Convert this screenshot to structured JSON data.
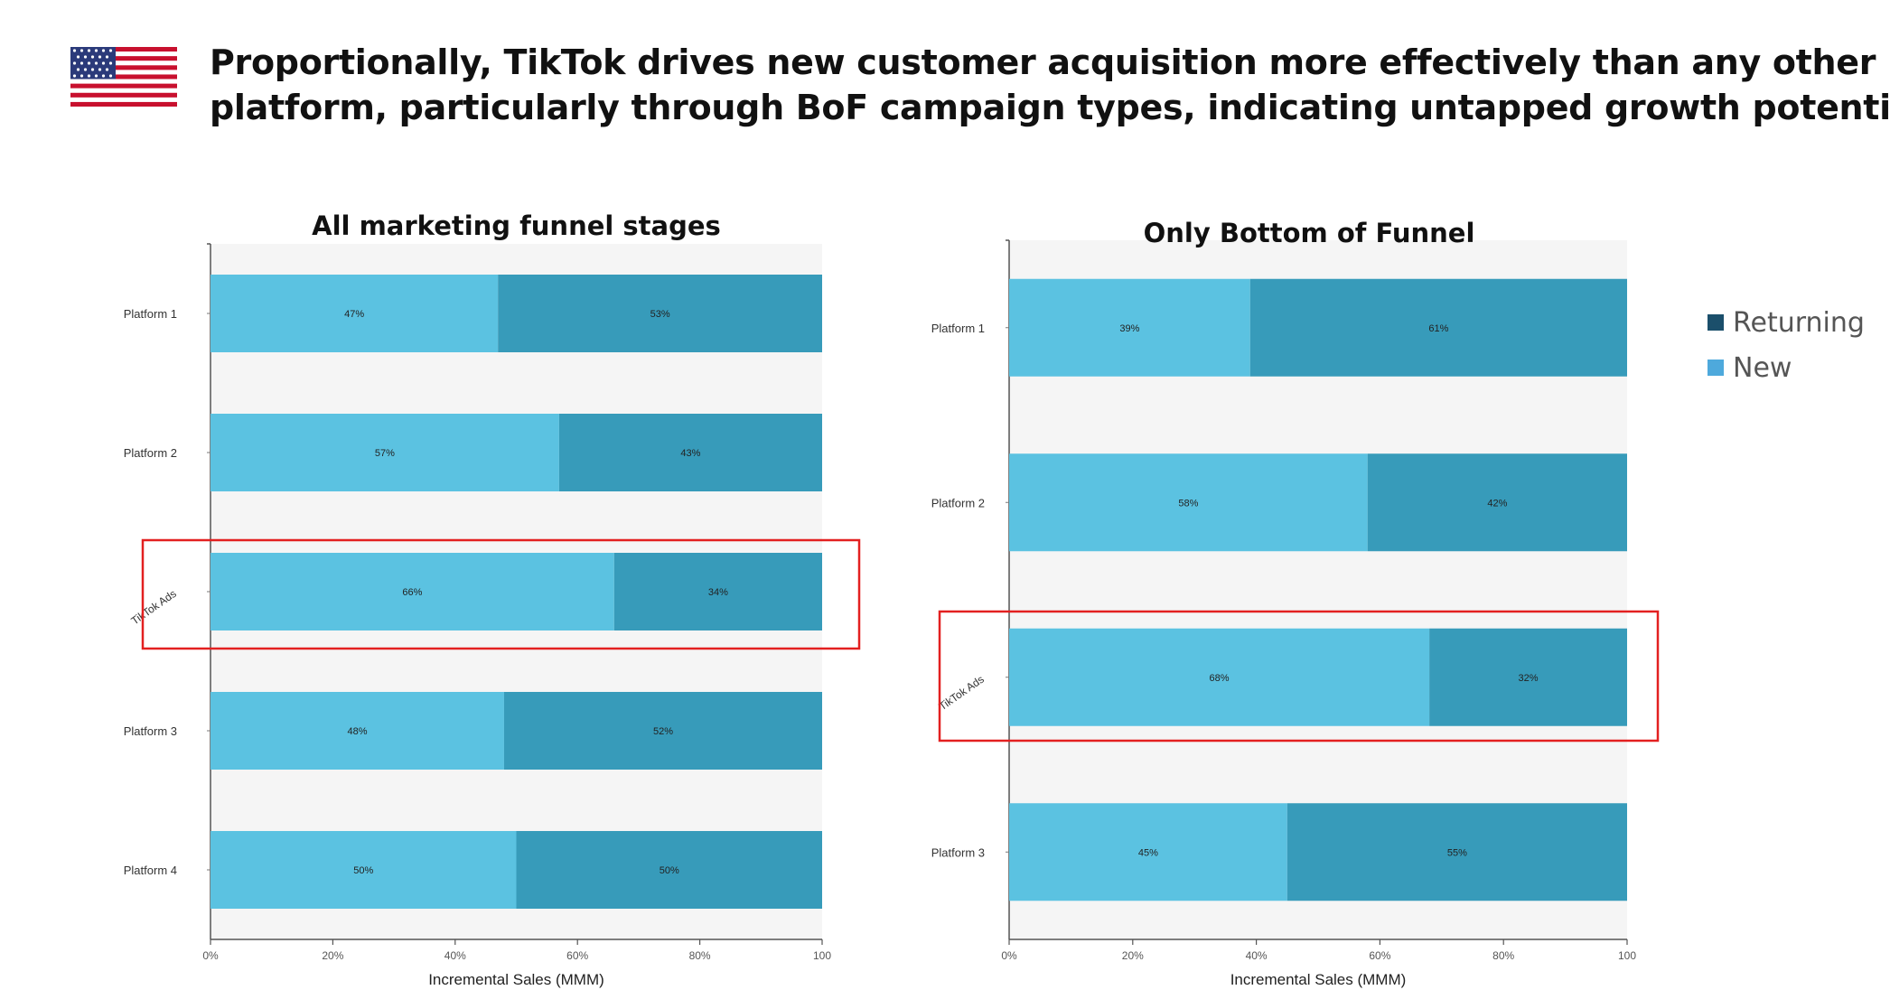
{
  "headline": {
    "line1": "Proportionally, TikTok drives new customer acquisition more effectively than any other",
    "line2": "platform, particularly through BoF campaign types, indicating untapped growth potential"
  },
  "flag_icon": "us-flag-icon",
  "colors": {
    "new": "#5bc2e1",
    "returning": "#379bba",
    "plot_bg": "#f5f5f5",
    "highlight": "#e32020",
    "legend_returning": "#1b4f6b",
    "legend_new": "#4ea9dc"
  },
  "legend": {
    "returning": "Returning",
    "new": "New"
  },
  "chart_data": [
    {
      "type": "bar",
      "orientation": "horizontal",
      "stacked": "percent",
      "title": "All marketing funnel stages",
      "xlabel": "Incremental Sales (MMM)",
      "ylabel": "",
      "xlim": [
        0,
        100
      ],
      "x_ticks": [
        "0%",
        "20%",
        "40%",
        "60%",
        "80%",
        "100"
      ],
      "categories": [
        "Platform 1",
        "Platform 2",
        "TikTok Ads",
        "Platform 3",
        "Platform 4"
      ],
      "series": [
        {
          "name": "New",
          "values": [
            47,
            57,
            66,
            48,
            50
          ],
          "labels": [
            "47%",
            "57%",
            "66%",
            "48%",
            "50%"
          ]
        },
        {
          "name": "Returning",
          "values": [
            53,
            43,
            34,
            52,
            50
          ],
          "labels": [
            "53%",
            "43%",
            "34%",
            "52%",
            "50%"
          ]
        }
      ],
      "highlighted_category": "TikTok Ads"
    },
    {
      "type": "bar",
      "orientation": "horizontal",
      "stacked": "percent",
      "title": "Only Bottom of Funnel",
      "xlabel": "Incremental Sales (MMM)",
      "ylabel": "",
      "xlim": [
        0,
        100
      ],
      "x_ticks": [
        "0%",
        "20%",
        "40%",
        "60%",
        "80%",
        "100"
      ],
      "categories": [
        "Platform 1",
        "Platform 2",
        "TikTok Ads",
        "Platform 3"
      ],
      "series": [
        {
          "name": "New",
          "values": [
            39,
            58,
            68,
            45
          ],
          "labels": [
            "39%",
            "58%",
            "68%",
            "45%"
          ]
        },
        {
          "name": "Returning",
          "values": [
            61,
            42,
            32,
            55
          ],
          "labels": [
            "61%",
            "42%",
            "32%",
            "55%"
          ]
        }
      ],
      "highlighted_category": "TikTok Ads"
    }
  ]
}
